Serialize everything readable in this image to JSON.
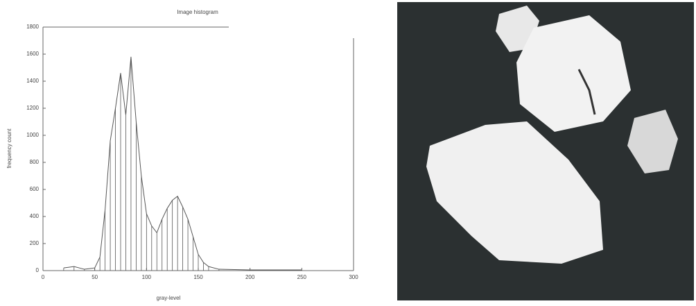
{
  "chart_data": {
    "type": "line",
    "title": "Image histogram",
    "x_label": "gray-level",
    "y_label": "frequency count",
    "x": [
      20,
      30,
      40,
      50,
      55,
      60,
      65,
      70,
      75,
      80,
      85,
      90,
      95,
      100,
      105,
      110,
      115,
      120,
      125,
      130,
      135,
      140,
      145,
      150,
      155,
      160,
      170,
      200,
      250
    ],
    "values": [
      20,
      30,
      10,
      20,
      100,
      450,
      960,
      1200,
      1460,
      1150,
      1580,
      1100,
      700,
      420,
      330,
      280,
      380,
      460,
      520,
      550,
      470,
      380,
      250,
      120,
      60,
      30,
      10,
      5,
      5
    ],
    "color": "#555555",
    "stems": true,
    "xlim": [
      0,
      300
    ],
    "ylim": [
      0,
      1800
    ],
    "xticks": [
      0,
      50,
      100,
      150,
      200,
      250,
      300
    ],
    "yticks": [
      0,
      200,
      400,
      600,
      800,
      1000,
      1200,
      1400,
      1600,
      1800
    ]
  }
}
